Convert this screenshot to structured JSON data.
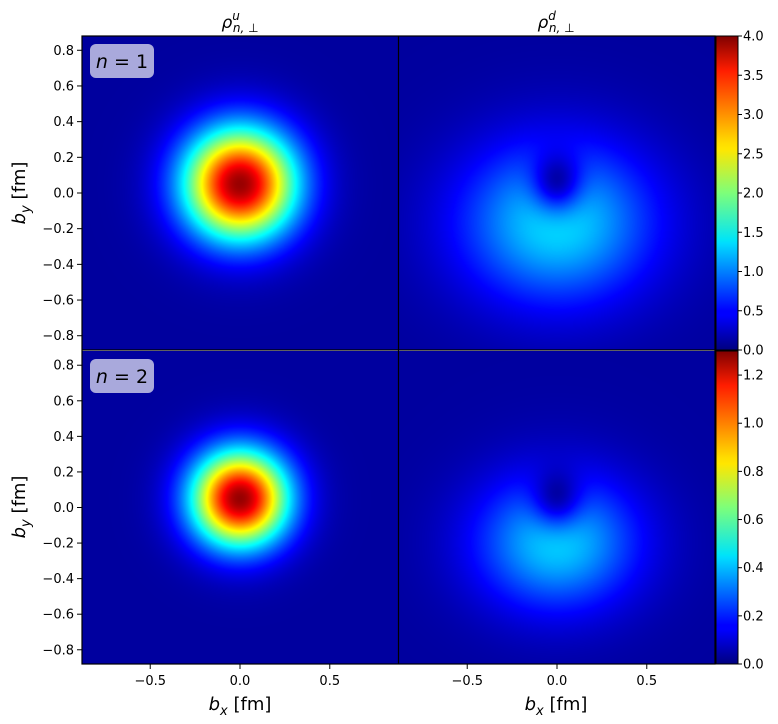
{
  "chart_data": {
    "type": "heatmap",
    "column_titles": [
      {
        "base": "ρ",
        "sup": "u",
        "sub": "n, ⊥"
      },
      {
        "base": "ρ",
        "sup": "d",
        "sub": "n, ⊥"
      }
    ],
    "xlabel": {
      "var": "b",
      "sub": "x",
      "unit": "[fm]"
    },
    "ylabel": {
      "var": "b",
      "sub": "y",
      "unit": "[fm]"
    },
    "xlim": [
      -0.88,
      0.88
    ],
    "ylim": [
      -0.88,
      0.88
    ],
    "x_ticks": [
      -0.5,
      0.0,
      0.5
    ],
    "x_tick_labels": [
      "−0.5",
      "0.0",
      "0.5"
    ],
    "y_ticks": [
      -0.8,
      -0.6,
      -0.4,
      -0.2,
      0.0,
      0.2,
      0.4,
      0.6,
      0.8
    ],
    "y_tick_labels": [
      "−0.8",
      "−0.6",
      "−0.4",
      "−0.2",
      "0.0",
      "0.2",
      "0.4",
      "0.6",
      "0.8"
    ],
    "colormap": "jet",
    "rows": [
      {
        "label": "n = 1",
        "label_var": "n",
        "label_op": " = ",
        "label_num": "1",
        "colorbar_range": [
          0.0,
          4.0
        ],
        "colorbar_ticks": [
          0.0,
          0.5,
          1.0,
          1.5,
          2.0,
          2.5,
          3.0,
          3.5,
          4.0
        ],
        "colorbar_tick_labels": [
          "0.0",
          "0.5",
          "1.0",
          "1.5",
          "2.0",
          "2.5",
          "3.0",
          "3.5",
          "4.0"
        ],
        "panels": [
          {
            "name": "u-quark n=1",
            "peak": 3.9,
            "peak_center": [
              0.0,
              0.05
            ],
            "width_fm": 0.22,
            "background": 0.12
          },
          {
            "name": "d-quark n=1",
            "peak": 1.35,
            "peak_center": [
              0.0,
              -0.17
            ],
            "width_fm": 0.3,
            "background": 0.12
          }
        ]
      },
      {
        "label": "n = 2",
        "label_var": "n",
        "label_op": " = ",
        "label_num": "2",
        "colorbar_range": [
          0.0,
          1.3
        ],
        "colorbar_ticks": [
          0.0,
          0.2,
          0.4,
          0.6,
          0.8,
          1.0,
          1.2
        ],
        "colorbar_tick_labels": [
          "0.0",
          "0.2",
          "0.4",
          "0.6",
          "0.8",
          "1.0",
          "1.2"
        ],
        "panels": [
          {
            "name": "u-quark n=2",
            "peak": 1.27,
            "peak_center": [
              0.0,
              0.05
            ],
            "width_fm": 0.19,
            "background": 0.04
          },
          {
            "name": "d-quark n=2",
            "peak": 0.42,
            "peak_center": [
              0.0,
              -0.2
            ],
            "width_fm": 0.25,
            "background": 0.04
          }
        ]
      }
    ],
    "badge_color": "#a9a9dc",
    "background_color": "#00008f"
  }
}
